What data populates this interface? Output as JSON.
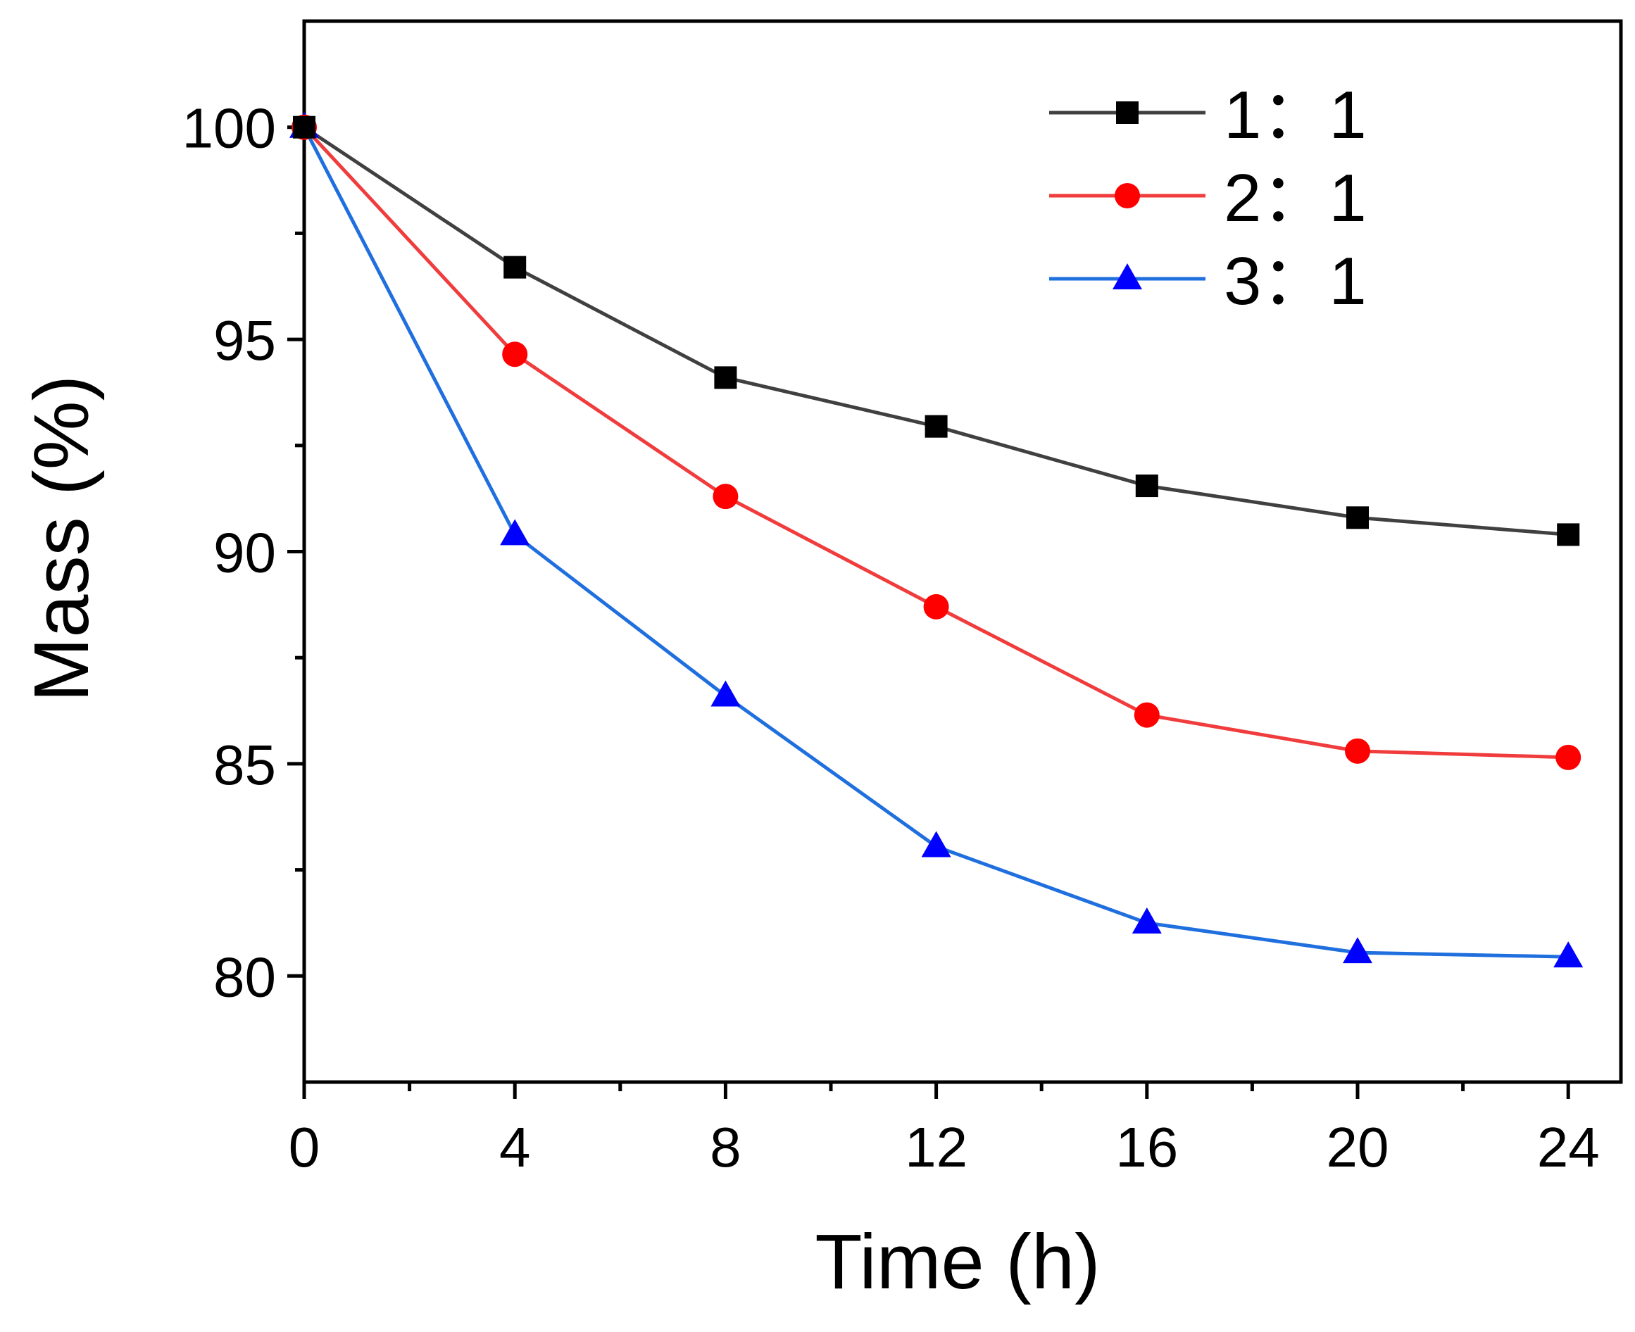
{
  "chart_data": {
    "type": "line",
    "title": "",
    "xlabel": "Time (h)",
    "ylabel": "Mass (%)",
    "x": [
      0,
      4,
      8,
      12,
      16,
      20,
      24
    ],
    "xlim": [
      0,
      25
    ],
    "ylim": [
      77.5,
      102.5
    ],
    "xticks": [
      0,
      4,
      8,
      12,
      16,
      20,
      24
    ],
    "xtick_labels": [
      "0",
      "4",
      "8",
      "12",
      "16",
      "20",
      "24"
    ],
    "xminor": [
      2,
      6,
      10,
      14,
      18,
      22
    ],
    "yticks": [
      80,
      85,
      90,
      95,
      100
    ],
    "ytick_labels": [
      "80",
      "85",
      "90",
      "95",
      "100"
    ],
    "yminor": [
      82.5,
      87.5,
      92.5,
      97.5
    ],
    "grid": false,
    "legend_position": "top-right",
    "series": [
      {
        "name": "1：1",
        "color": "#404040",
        "marker_color": "#000000",
        "marker": "square",
        "values": [
          100,
          96.7,
          94.1,
          92.95,
          91.55,
          90.8,
          90.4
        ]
      },
      {
        "name": "2：1",
        "color": "#f03c3c",
        "marker_color": "#ff0000",
        "marker": "circle",
        "values": [
          100,
          94.65,
          91.3,
          88.7,
          86.15,
          85.3,
          85.15
        ]
      },
      {
        "name": "3：1",
        "color": "#1f6fde",
        "marker_color": "#0000ff",
        "marker": "triangle",
        "values": [
          100,
          90.4,
          86.6,
          83.05,
          81.25,
          80.55,
          80.45
        ]
      }
    ]
  }
}
